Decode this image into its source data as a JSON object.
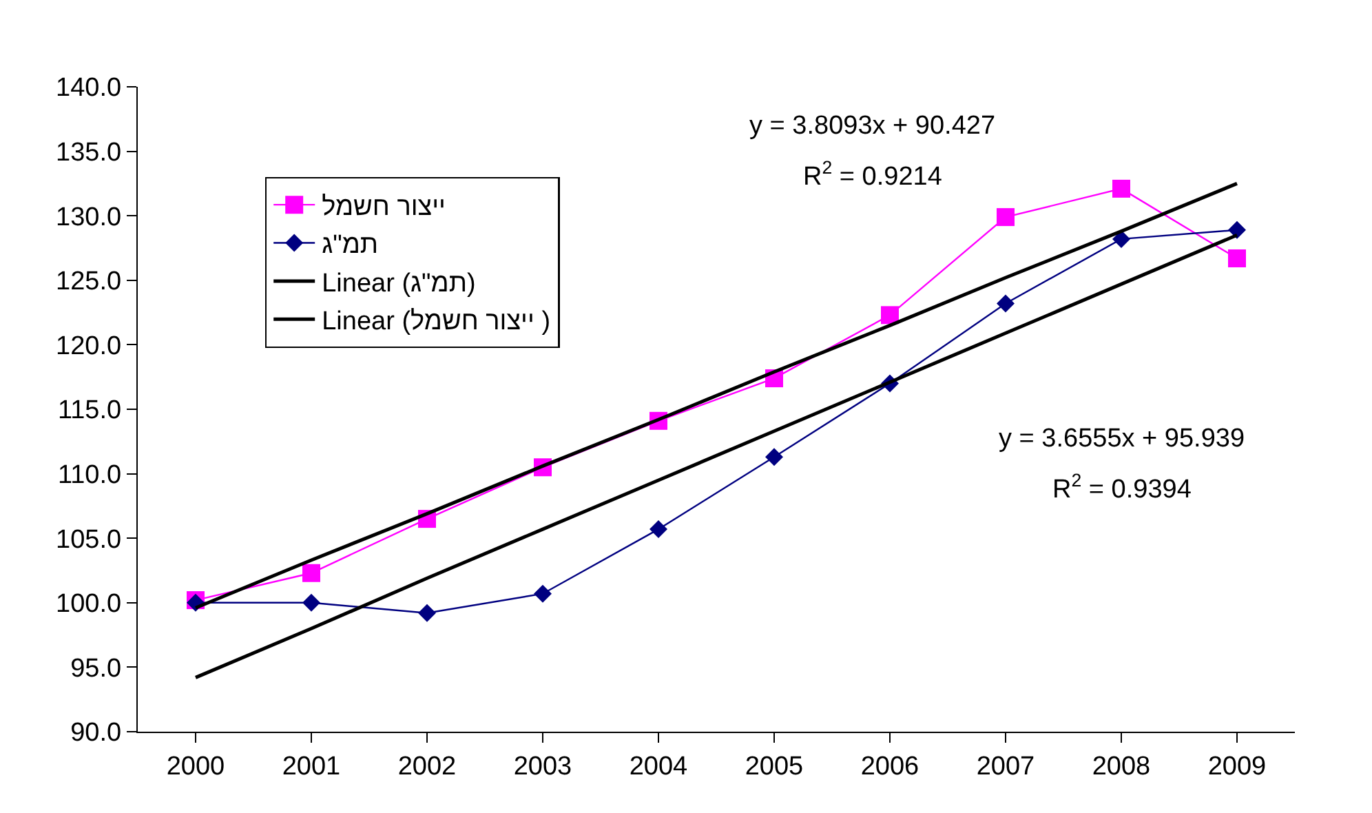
{
  "chart_data": {
    "type": "line",
    "categories": [
      "2000",
      "2001",
      "2002",
      "2003",
      "2004",
      "2005",
      "2006",
      "2007",
      "2008",
      "2009"
    ],
    "series": [
      {
        "name": "ייצור חשמל",
        "color": "#ff00ff",
        "marker": "square",
        "values": [
          100.2,
          102.3,
          106.5,
          110.5,
          114.1,
          117.4,
          122.3,
          129.9,
          132.1,
          126.7
        ]
      },
      {
        "name": "תמ\"ג",
        "color": "#000080",
        "marker": "diamond",
        "values": [
          100.0,
          100.0,
          99.2,
          100.7,
          105.7,
          111.3,
          117.0,
          123.2,
          128.2,
          128.9
        ]
      },
      {
        "name": "Linear (תמ\"ג)",
        "color": "#000000",
        "marker": "none",
        "values": [
          94.2,
          98.0,
          101.9,
          105.7,
          109.5,
          113.3,
          117.1,
          120.9,
          124.7,
          128.5
        ]
      },
      {
        "name": "Linear (ייצור חשמל )",
        "color": "#000000",
        "marker": "none",
        "values": [
          99.6,
          103.3,
          106.9,
          110.6,
          114.2,
          117.9,
          121.5,
          125.2,
          128.8,
          132.5
        ]
      }
    ],
    "ylim": [
      90,
      140
    ],
    "yticks": [
      {
        "value": 90,
        "label": "90.0"
      },
      {
        "value": 95,
        "label": "95.0"
      },
      {
        "value": 100,
        "label": "100.0"
      },
      {
        "value": 105,
        "label": "105.0"
      },
      {
        "value": 110,
        "label": "110.0"
      },
      {
        "value": 115,
        "label": "115.0"
      },
      {
        "value": 120,
        "label": "120.0"
      },
      {
        "value": 125,
        "label": "125.0"
      },
      {
        "value": 130,
        "label": "130.0"
      },
      {
        "value": 135,
        "label": "135.0"
      },
      {
        "value": 140,
        "label": "140.0"
      }
    ],
    "annotations": [
      "y = 3.8093x + 90.427",
      "R$^{2}$ = 0.9214",
      "y = 3.6555x + 95.939",
      "R$^{2}$ = 0.9394"
    ],
    "legend": "top left",
    "line_style": "solid"
  }
}
